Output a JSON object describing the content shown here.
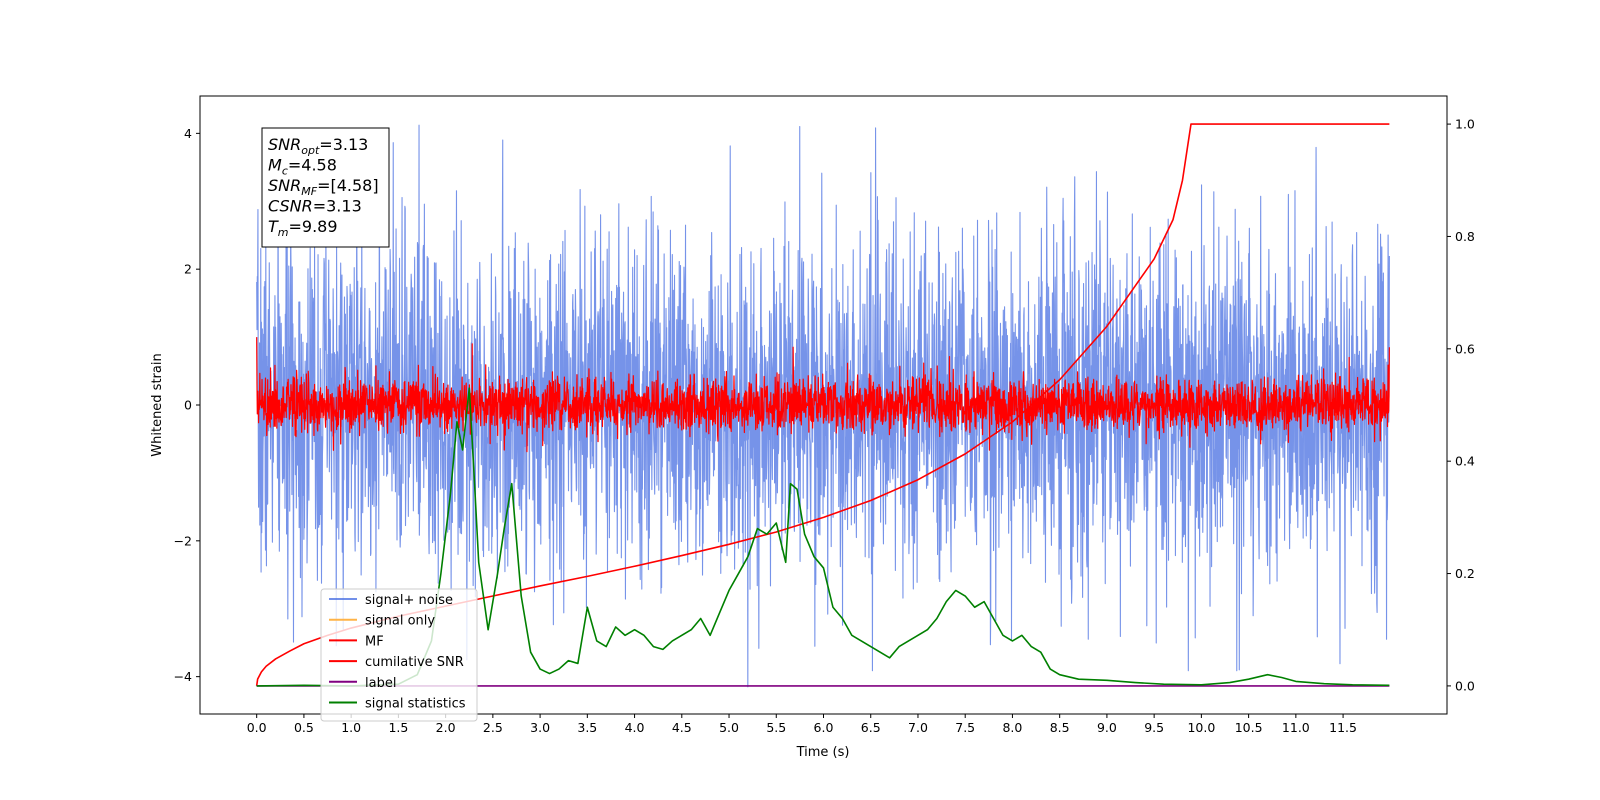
{
  "chart_data": {
    "type": "line",
    "xlabel": "Time (s)",
    "ylabel": "Whitened strain",
    "xlim": [
      -0.6,
      12.6
    ],
    "ylim": [
      -4.55,
      4.55
    ],
    "y2lim": [
      -0.05,
      1.05
    ],
    "x_ticks": [
      "0.0",
      "0.5",
      "1.0",
      "1.5",
      "2.0",
      "2.5",
      "3.0",
      "3.5",
      "4.0",
      "4.5",
      "5.0",
      "5.5",
      "6.0",
      "6.5",
      "7.0",
      "7.5",
      "8.0",
      "8.5",
      "9.0",
      "9.5",
      "10.0",
      "10.5",
      "11.0",
      "11.5"
    ],
    "y_ticks": [
      "4",
      "2",
      "0",
      "−2",
      "−4"
    ],
    "y2_ticks": [
      "1.0",
      "0.8",
      "0.6",
      "0.4",
      "0.2",
      "0.0"
    ],
    "legend_position": "lower-left",
    "annotation_box": {
      "lines": [
        {
          "main": "SNR",
          "sub": "opt",
          "value": "=3.13"
        },
        {
          "main": "M",
          "sub": "c",
          "value": "=4.58"
        },
        {
          "main": "SNR",
          "sub": "MF",
          "value": "=[4.58]"
        },
        {
          "main": "CSNR",
          "sub": "",
          "value": "=3.13"
        },
        {
          "main": "T",
          "sub": "m",
          "value": "=9.89"
        }
      ]
    },
    "series": [
      {
        "name": "signal+ noise",
        "color": "#4169e1",
        "axis": "left",
        "kind": "noise",
        "x_range": [
          0.0,
          11.99
        ],
        "center": 0.0,
        "sigma": 1.25,
        "extremes": [
          {
            "x": 1.72,
            "y": 4.12
          },
          {
            "x": 5.2,
            "y": -4.15
          },
          {
            "x": 5.75,
            "y": 4.1
          },
          {
            "x": 6.55,
            "y": 4.08
          },
          {
            "x": 10.4,
            "y": -3.9
          }
        ]
      },
      {
        "name": "signal only",
        "color": "#ffb347",
        "axis": "left",
        "kind": "hidden",
        "x": [],
        "y": []
      },
      {
        "name": "MF",
        "color": "#ff0000",
        "axis": "left",
        "kind": "noise",
        "x_range": [
          0.0,
          11.99
        ],
        "center": 0.0,
        "sigma": 0.2,
        "extremes": [
          {
            "x": 0.0,
            "y": 1.0
          },
          {
            "x": 2.28,
            "y": 0.9
          },
          {
            "x": 5.68,
            "y": 0.85
          },
          {
            "x": 11.99,
            "y": 0.85
          }
        ]
      },
      {
        "name": "cumilative SNR",
        "color": "#ff0000",
        "axis": "right",
        "kind": "line",
        "x": [
          0.0,
          0.01,
          0.05,
          0.1,
          0.2,
          0.35,
          0.5,
          0.75,
          1.0,
          1.5,
          2.0,
          2.5,
          3.0,
          3.5,
          4.0,
          4.5,
          5.0,
          5.5,
          6.0,
          6.5,
          7.0,
          7.5,
          8.0,
          8.5,
          9.0,
          9.5,
          9.7,
          9.8,
          9.89,
          10.5,
          11.0,
          11.5,
          11.99
        ],
        "y": [
          0.0,
          0.012,
          0.025,
          0.035,
          0.048,
          0.062,
          0.075,
          0.09,
          0.103,
          0.124,
          0.142,
          0.16,
          0.178,
          0.195,
          0.213,
          0.232,
          0.252,
          0.274,
          0.3,
          0.33,
          0.367,
          0.413,
          0.47,
          0.545,
          0.64,
          0.76,
          0.83,
          0.9,
          1.0,
          1.0,
          1.0,
          1.0,
          1.0
        ]
      },
      {
        "name": "label",
        "color": "#800080",
        "axis": "right",
        "kind": "line",
        "x": [
          0.0,
          11.99
        ],
        "y": [
          0.0,
          0.0
        ]
      },
      {
        "name": "signal statistics",
        "color": "#008000",
        "axis": "right",
        "kind": "line",
        "x": [
          0.0,
          0.5,
          1.0,
          1.5,
          1.7,
          1.85,
          1.95,
          2.05,
          2.12,
          2.18,
          2.25,
          2.3,
          2.35,
          2.45,
          2.55,
          2.62,
          2.7,
          2.8,
          2.9,
          3.0,
          3.1,
          3.2,
          3.3,
          3.4,
          3.5,
          3.6,
          3.7,
          3.8,
          3.9,
          4.0,
          4.1,
          4.2,
          4.3,
          4.4,
          4.5,
          4.6,
          4.7,
          4.8,
          4.9,
          5.0,
          5.1,
          5.2,
          5.3,
          5.4,
          5.5,
          5.6,
          5.65,
          5.72,
          5.8,
          5.9,
          6.0,
          6.1,
          6.2,
          6.3,
          6.4,
          6.5,
          6.6,
          6.7,
          6.8,
          6.9,
          7.0,
          7.1,
          7.2,
          7.3,
          7.4,
          7.5,
          7.6,
          7.7,
          7.8,
          7.9,
          8.0,
          8.1,
          8.2,
          8.3,
          8.4,
          8.5,
          8.7,
          9.0,
          9.3,
          9.6,
          10.0,
          10.3,
          10.5,
          10.7,
          10.85,
          11.0,
          11.3,
          11.6,
          11.99
        ],
        "y": [
          0.0,
          0.001,
          0.0,
          0.003,
          0.02,
          0.08,
          0.2,
          0.34,
          0.47,
          0.42,
          0.53,
          0.38,
          0.22,
          0.1,
          0.2,
          0.28,
          0.36,
          0.16,
          0.06,
          0.03,
          0.022,
          0.03,
          0.045,
          0.04,
          0.14,
          0.08,
          0.07,
          0.105,
          0.09,
          0.1,
          0.09,
          0.07,
          0.065,
          0.08,
          0.09,
          0.1,
          0.12,
          0.09,
          0.13,
          0.17,
          0.2,
          0.23,
          0.28,
          0.27,
          0.29,
          0.22,
          0.36,
          0.35,
          0.27,
          0.23,
          0.21,
          0.14,
          0.12,
          0.09,
          0.08,
          0.07,
          0.06,
          0.05,
          0.07,
          0.08,
          0.09,
          0.1,
          0.12,
          0.15,
          0.17,
          0.16,
          0.14,
          0.15,
          0.12,
          0.09,
          0.08,
          0.09,
          0.07,
          0.06,
          0.03,
          0.02,
          0.012,
          0.01,
          0.006,
          0.003,
          0.002,
          0.006,
          0.012,
          0.02,
          0.015,
          0.008,
          0.004,
          0.002,
          0.001
        ]
      }
    ]
  }
}
